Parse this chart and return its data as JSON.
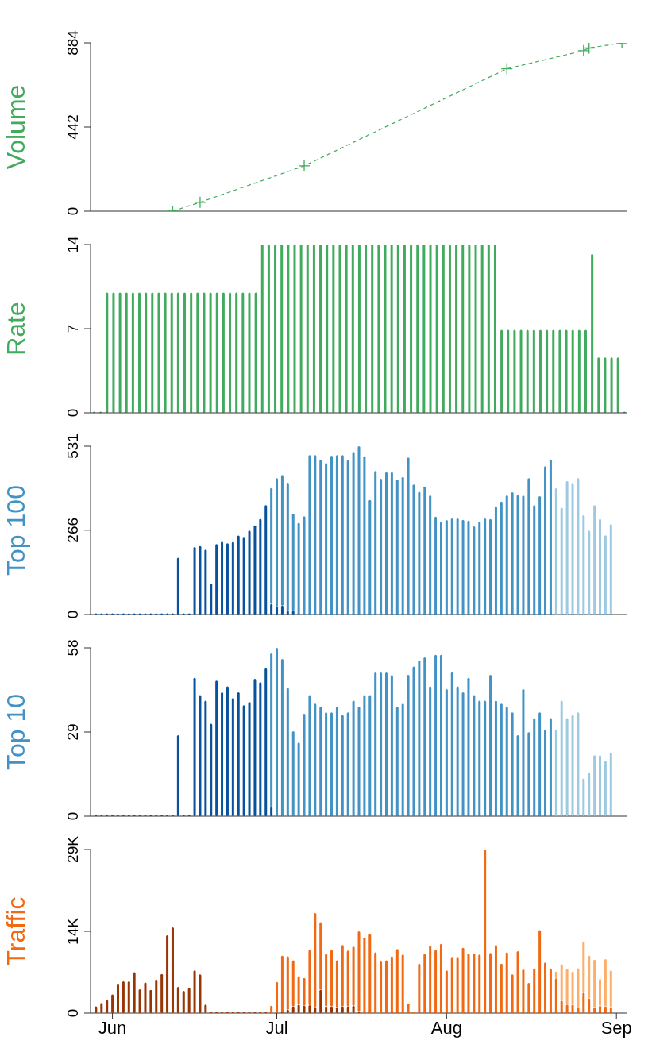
{
  "chart_data": [
    {
      "type": "line",
      "ylabel": "Volume",
      "line_style": "dashed",
      "marker": "cross",
      "tick_labels": "y",
      "xlim": [
        "--05-28",
        "--09-03"
      ],
      "xticks": [
        {
          "value": "--06-01",
          "label": null
        },
        {
          "value": "--07-01",
          "label": null
        },
        {
          "value": "--08-01",
          "label": null
        },
        {
          "value": "--09-01",
          "label": null
        }
      ],
      "ylim": [
        0,
        884
      ],
      "yticks": [
        0,
        442,
        884
      ],
      "x": [
        "--06-12",
        "--06-17",
        "--07-06",
        "--08-12",
        "--08-26",
        "--08-27",
        "--09-02"
      ],
      "series": [
        {
          "color": "#41ab5d",
          "values": [
            0,
            47,
            238,
            748,
            843,
            857,
            884
          ]
        }
      ]
    },
    {
      "type": "bar",
      "ylabel": "Rate",
      "tick_labels": "y",
      "ylim": [
        0,
        14
      ],
      "yticks": [
        0,
        7,
        14
      ],
      "categories": [
        null,
        null,
        null,
        null,
        null,
        null,
        null,
        null,
        null,
        null,
        null,
        null,
        null,
        null,
        null,
        null,
        null,
        null,
        null,
        null,
        null,
        null,
        null,
        null,
        null,
        null,
        null,
        null,
        null,
        null,
        null,
        null,
        null,
        null,
        null,
        null,
        null,
        null,
        null,
        null,
        null,
        null,
        null,
        null,
        null,
        null,
        null,
        null,
        null,
        null,
        null,
        null,
        null,
        null,
        null,
        null,
        null,
        null,
        null,
        null,
        null,
        null,
        null,
        null,
        null,
        null,
        null,
        null,
        null,
        null,
        null,
        null,
        null,
        null,
        null,
        null,
        null,
        null,
        null,
        null,
        null,
        null,
        null
      ],
      "series": [
        {
          "color": "#41ab5d",
          "values": [
            0,
            0,
            10,
            10,
            10,
            10,
            10,
            10,
            10,
            10,
            10,
            10,
            10,
            10,
            10,
            10,
            10,
            10,
            10,
            10,
            10,
            10,
            10,
            10,
            10,
            10,
            14,
            14,
            14,
            14,
            14,
            14,
            14,
            14,
            14,
            14,
            14,
            14,
            14,
            14,
            14,
            14,
            14,
            14,
            14,
            14,
            14,
            14,
            14,
            14,
            14,
            14,
            14,
            14,
            14,
            14,
            14,
            14,
            14,
            14,
            14,
            14,
            14,
            6.9,
            6.9,
            6.9,
            6.9,
            6.9,
            6.9,
            6.9,
            6.9,
            6.9,
            6.9,
            6.9,
            6.9,
            6.9,
            6.9,
            13.2,
            4.6,
            4.6,
            4.6,
            4.6,
            0
          ]
        }
      ]
    },
    {
      "type": "bar",
      "stacked": true,
      "ylabel": "Top 100",
      "tick_labels": "y",
      "xlim": [
        "--05-28",
        "--09-03"
      ],
      "xticks": [
        {
          "value": "--06-01",
          "label": null
        },
        {
          "value": "--07-01",
          "label": null
        },
        {
          "value": "--08-01",
          "label": null
        },
        {
          "value": "--09-01",
          "label": null
        }
      ],
      "ylim": [
        0,
        531
      ],
      "yticks": [
        0,
        266,
        531
      ],
      "x": [
        "--05-29",
        "--05-30",
        "--05-31",
        "--06-01",
        "--06-02",
        "--06-03",
        "--06-04",
        "--06-05",
        "--06-06",
        "--06-07",
        "--06-08",
        "--06-09",
        "--06-10",
        "--06-11",
        "--06-12",
        "--06-13",
        "--06-14",
        "--06-15",
        "--06-16",
        "--06-17",
        "--06-18",
        "--06-19",
        "--06-20",
        "--06-21",
        "--06-22",
        "--06-23",
        "--06-24",
        "--06-25",
        "--06-26",
        "--06-27",
        "--06-28",
        "--06-29",
        "--06-30",
        "--07-01",
        "--07-02",
        "--07-03",
        "--07-04",
        "--07-05",
        "--07-06",
        "--07-07",
        "--07-08",
        "--07-09",
        "--07-10",
        "--07-11",
        "--07-12",
        "--07-13",
        "--07-14",
        "--07-15",
        "--07-16",
        "--07-17",
        "--07-18",
        "--07-19",
        "--07-20",
        "--07-21",
        "--07-22",
        "--07-23",
        "--07-24",
        "--07-25",
        "--07-26",
        "--07-27",
        "--07-28",
        "--07-29",
        "--07-30",
        "--07-31",
        "--08-01",
        "--08-02",
        "--08-03",
        "--08-04",
        "--08-05",
        "--08-06",
        "--08-07",
        "--08-08",
        "--08-09",
        "--08-10",
        "--08-11",
        "--08-12",
        "--08-13",
        "--08-14",
        "--08-15",
        "--08-16",
        "--08-17",
        "--08-18",
        "--08-19",
        "--08-20",
        "--08-21",
        "--08-22",
        "--08-23",
        "--08-24",
        "--08-25",
        "--08-26",
        "--08-27",
        "--08-28",
        "--08-29",
        "--08-30",
        "--08-31"
      ],
      "series": [
        {
          "color": "#08519c",
          "values": [
            0,
            0,
            0,
            0,
            0,
            0,
            0,
            0,
            0,
            0,
            0,
            0,
            0,
            0,
            0,
            179,
            0,
            0,
            213,
            216,
            205,
            97,
            222,
            230,
            225,
            229,
            249,
            245,
            265,
            281,
            302,
            345,
            33,
            25,
            28,
            12,
            12,
            0,
            0,
            0,
            0,
            0,
            0,
            0,
            0,
            0,
            0,
            0,
            0,
            0,
            0,
            0,
            0,
            0,
            0,
            0,
            0,
            0,
            0,
            0,
            0,
            0,
            0,
            0,
            0,
            0,
            0,
            0,
            0,
            0,
            0,
            0,
            0,
            0,
            0,
            0,
            0,
            0,
            0,
            0,
            0,
            0,
            0,
            0,
            0,
            0,
            0,
            0,
            0,
            0,
            0,
            0,
            0,
            0,
            0
          ]
        },
        {
          "color": "#4292c6",
          "values": [
            null,
            null,
            null,
            null,
            null,
            null,
            null,
            null,
            null,
            null,
            null,
            null,
            null,
            null,
            null,
            null,
            null,
            null,
            null,
            null,
            null,
            null,
            null,
            null,
            null,
            null,
            null,
            null,
            null,
            null,
            null,
            null,
            366,
            405,
            412,
            404,
            306,
            289,
            310,
            503,
            503,
            487,
            478,
            501,
            503,
            503,
            487,
            513,
            531,
            499,
            361,
            453,
            428,
            449,
            449,
            426,
            434,
            495,
            410,
            387,
            404,
            376,
            309,
            293,
            298,
            303,
            303,
            299,
            296,
            278,
            293,
            303,
            301,
            342,
            356,
            376,
            386,
            377,
            375,
            430,
            345,
            373,
            468,
            489,
            null,
            null,
            null,
            null,
            null,
            null,
            null,
            null,
            null,
            null,
            null
          ]
        },
        {
          "color": "#9ecae1",
          "values": [
            null,
            null,
            null,
            null,
            null,
            null,
            null,
            null,
            null,
            null,
            null,
            null,
            null,
            null,
            null,
            null,
            null,
            null,
            null,
            null,
            null,
            null,
            null,
            null,
            null,
            null,
            null,
            null,
            null,
            null,
            null,
            null,
            null,
            null,
            null,
            null,
            null,
            null,
            null,
            null,
            null,
            null,
            null,
            null,
            null,
            null,
            null,
            null,
            null,
            null,
            null,
            null,
            null,
            null,
            null,
            null,
            null,
            null,
            null,
            null,
            null,
            null,
            null,
            null,
            null,
            null,
            null,
            null,
            null,
            null,
            null,
            null,
            null,
            null,
            null,
            null,
            null,
            null,
            null,
            null,
            null,
            null,
            null,
            null,
            398,
            337,
            421,
            415,
            430,
            313,
            265,
            345,
            301,
            250,
            285
          ]
        }
      ]
    },
    {
      "type": "bar",
      "stacked": true,
      "ylabel": "Top 10",
      "tick_labels": "y",
      "xlim": [
        "--05-28",
        "--09-03"
      ],
      "xticks": [
        {
          "value": "--06-01",
          "label": null
        },
        {
          "value": "--07-01",
          "label": null
        },
        {
          "value": "--08-01",
          "label": null
        },
        {
          "value": "--09-01",
          "label": null
        }
      ],
      "ylim": [
        0,
        58
      ],
      "yticks": [
        0,
        29,
        58
      ],
      "x": [
        "--05-29",
        "--05-30",
        "--05-31",
        "--06-01",
        "--06-02",
        "--06-03",
        "--06-04",
        "--06-05",
        "--06-06",
        "--06-07",
        "--06-08",
        "--06-09",
        "--06-10",
        "--06-11",
        "--06-12",
        "--06-13",
        "--06-14",
        "--06-15",
        "--06-16",
        "--06-17",
        "--06-18",
        "--06-19",
        "--06-20",
        "--06-21",
        "--06-22",
        "--06-23",
        "--06-24",
        "--06-25",
        "--06-26",
        "--06-27",
        "--06-28",
        "--06-29",
        "--06-30",
        "--07-01",
        "--07-02",
        "--07-03",
        "--07-04",
        "--07-05",
        "--07-06",
        "--07-07",
        "--07-08",
        "--07-09",
        "--07-10",
        "--07-11",
        "--07-12",
        "--07-13",
        "--07-14",
        "--07-15",
        "--07-16",
        "--07-17",
        "--07-18",
        "--07-19",
        "--07-20",
        "--07-21",
        "--07-22",
        "--07-23",
        "--07-24",
        "--07-25",
        "--07-26",
        "--07-27",
        "--07-28",
        "--07-29",
        "--07-30",
        "--07-31",
        "--08-01",
        "--08-02",
        "--08-03",
        "--08-04",
        "--08-05",
        "--08-06",
        "--08-07",
        "--08-08",
        "--08-09",
        "--08-10",
        "--08-11",
        "--08-12",
        "--08-13",
        "--08-14",
        "--08-15",
        "--08-16",
        "--08-17",
        "--08-18",
        "--08-19",
        "--08-20",
        "--08-21",
        "--08-22",
        "--08-23",
        "--08-24",
        "--08-25",
        "--08-26",
        "--08-27",
        "--08-28",
        "--08-29",
        "--08-30",
        "--08-31"
      ],
      "series": [
        {
          "color": "#08519c",
          "values": [
            0,
            0,
            0,
            0,
            0,
            0,
            0,
            0,
            0,
            0,
            0,
            0,
            0,
            0,
            0,
            27.9,
            0,
            0,
            47.7,
            41.7,
            39.8,
            31.9,
            46.7,
            42.7,
            44.7,
            40.7,
            42.7,
            38.2,
            39.3,
            47.3,
            46.2,
            51.2,
            3.2,
            0,
            0,
            0,
            0,
            0,
            0,
            0,
            0,
            0,
            0,
            0,
            0,
            0,
            0,
            0,
            0,
            0,
            0,
            0,
            0,
            0,
            0,
            0,
            0,
            0,
            0,
            0,
            0,
            0,
            0,
            0,
            0,
            0,
            0,
            0,
            0,
            0,
            0,
            0,
            0,
            0,
            0,
            0,
            0,
            0,
            0,
            0,
            0,
            0,
            0,
            0,
            0,
            0,
            0,
            0,
            0,
            0,
            0,
            0,
            0,
            0,
            0
          ]
        },
        {
          "color": "#4292c6",
          "values": [
            null,
            null,
            null,
            null,
            null,
            null,
            null,
            null,
            null,
            null,
            null,
            null,
            null,
            null,
            null,
            null,
            null,
            null,
            null,
            null,
            null,
            null,
            null,
            null,
            null,
            null,
            null,
            null,
            null,
            null,
            null,
            null,
            52.9,
            58,
            54.2,
            44.2,
            29.3,
            25.4,
            35.3,
            41.7,
            38.8,
            37.7,
            35.8,
            35.8,
            37.7,
            34.8,
            35.8,
            39.8,
            37.7,
            41.7,
            41.7,
            49.5,
            49.5,
            49.5,
            48.6,
            37.7,
            38.8,
            48.7,
            51.6,
            53.6,
            54.7,
            44.7,
            55.6,
            55.6,
            43.8,
            49.6,
            44.7,
            42.7,
            47.7,
            41.7,
            39.8,
            39.8,
            48.7,
            39.8,
            38.8,
            37.7,
            35.8,
            27.9,
            43.8,
            28.9,
            33.8,
            35.8,
            29.9,
            33.8,
            null,
            null,
            null,
            null,
            null,
            null,
            null,
            null,
            null,
            null,
            null
          ]
        },
        {
          "color": "#9ecae1",
          "values": [
            null,
            null,
            null,
            null,
            null,
            null,
            null,
            null,
            null,
            null,
            null,
            null,
            null,
            null,
            null,
            null,
            null,
            null,
            null,
            null,
            null,
            null,
            null,
            null,
            null,
            null,
            null,
            null,
            null,
            null,
            null,
            null,
            null,
            null,
            null,
            null,
            null,
            null,
            null,
            null,
            null,
            null,
            null,
            null,
            null,
            null,
            null,
            null,
            null,
            null,
            null,
            null,
            null,
            null,
            null,
            null,
            null,
            null,
            null,
            null,
            null,
            null,
            null,
            null,
            null,
            null,
            null,
            null,
            null,
            null,
            null,
            null,
            null,
            null,
            null,
            null,
            null,
            null,
            null,
            null,
            null,
            null,
            null,
            null,
            29.9,
            39.8,
            33.8,
            34.8,
            35.8,
            13.0,
            15.0,
            21.0,
            21.0,
            19.0,
            21.9
          ]
        }
      ]
    },
    {
      "type": "bar",
      "stacked": true,
      "ylabel": "Traffic",
      "xlim": [
        "--05-28",
        "--09-03"
      ],
      "xticks": [
        {
          "value": "--06-01",
          "label": "Jun"
        },
        {
          "value": "--07-01",
          "label": "Jul"
        },
        {
          "value": "--08-01",
          "label": "Aug"
        },
        {
          "value": "--09-01",
          "label": "Sep"
        }
      ],
      "ylim": [
        0,
        28800
      ],
      "yticks": [
        0,
        {
          "value": 14400,
          "label": "14K"
        },
        {
          "value": 28800,
          "label": "29K"
        }
      ],
      "x": [
        "--05-29",
        "--05-30",
        "--05-31",
        "--06-01",
        "--06-02",
        "--06-03",
        "--06-04",
        "--06-05",
        "--06-06",
        "--06-07",
        "--06-08",
        "--06-09",
        "--06-10",
        "--06-11",
        "--06-12",
        "--06-13",
        "--06-14",
        "--06-15",
        "--06-16",
        "--06-17",
        "--06-18",
        "--06-19",
        "--06-20",
        "--06-21",
        "--06-22",
        "--06-23",
        "--06-24",
        "--06-25",
        "--06-26",
        "--06-27",
        "--06-28",
        "--06-29",
        "--06-30",
        "--07-01",
        "--07-02",
        "--07-03",
        "--07-04",
        "--07-05",
        "--07-06",
        "--07-07",
        "--07-08",
        "--07-09",
        "--07-10",
        "--07-11",
        "--07-12",
        "--07-13",
        "--07-14",
        "--07-15",
        "--07-16",
        "--07-17",
        "--07-18",
        "--07-19",
        "--07-20",
        "--07-21",
        "--07-22",
        "--07-23",
        "--07-24",
        "--07-25",
        "--07-26",
        "--07-27",
        "--07-28",
        "--07-29",
        "--07-30",
        "--07-31",
        "--08-01",
        "--08-02",
        "--08-03",
        "--08-04",
        "--08-05",
        "--08-06",
        "--08-07",
        "--08-08",
        "--08-09",
        "--08-10",
        "--08-11",
        "--08-12",
        "--08-13",
        "--08-14",
        "--08-15",
        "--08-16",
        "--08-17",
        "--08-18",
        "--08-19",
        "--08-20",
        "--08-21",
        "--08-22",
        "--08-23",
        "--08-24",
        "--08-25",
        "--08-26",
        "--08-27",
        "--08-28",
        "--08-29",
        "--08-30",
        "--08-31"
      ],
      "series": [
        {
          "color": "#993404",
          "values": [
            1200,
            1800,
            2300,
            3300,
            5200,
            5600,
            5600,
            7200,
            4200,
            5400,
            4100,
            5900,
            6900,
            13700,
            15100,
            4600,
            3900,
            4400,
            7500,
            6800,
            1500,
            0,
            0,
            0,
            0,
            0,
            0,
            0,
            0,
            0,
            0,
            0,
            0,
            0,
            100,
            600,
            1200,
            1500,
            1300,
            1400,
            1100,
            4100,
            1200,
            1200,
            1000,
            1200,
            1200,
            1300,
            300,
            0,
            0,
            0,
            0,
            0,
            0,
            0,
            0,
            0,
            0,
            0,
            0,
            0,
            0,
            0,
            0,
            0,
            0,
            0,
            0,
            0,
            0,
            0,
            0,
            0,
            0,
            0,
            0,
            0,
            0,
            0,
            0,
            0,
            0,
            0,
            0,
            0,
            0,
            0,
            0,
            0,
            0,
            0,
            0,
            0,
            0
          ]
        },
        {
          "color": "#f16913",
          "values": [
            null,
            null,
            null,
            null,
            null,
            null,
            null,
            null,
            null,
            null,
            null,
            null,
            null,
            null,
            null,
            null,
            null,
            null,
            null,
            null,
            null,
            null,
            null,
            null,
            null,
            null,
            null,
            null,
            null,
            null,
            null,
            null,
            1300,
            5500,
            10000,
            9400,
            8100,
            5000,
            4900,
            9700,
            16500,
            11900,
            9200,
            9900,
            8300,
            10800,
            9800,
            10400,
            14100,
            13300,
            13900,
            10700,
            9100,
            9300,
            10000,
            11300,
            10300,
            1700,
            0,
            8700,
            10400,
            11900,
            11100,
            12200,
            7500,
            9900,
            9900,
            11500,
            10500,
            10500,
            10300,
            28800,
            10600,
            12000,
            8700,
            10700,
            6800,
            10900,
            7700,
            5300,
            7900,
            14600,
            8900,
            7800,
            6100,
            2200,
            1500,
            1500,
            1100,
            3600,
            2600,
            1000,
            1300,
            1200,
            1100
          ]
        },
        {
          "color": "#fdae6b",
          "values": [
            null,
            null,
            null,
            null,
            null,
            null,
            null,
            null,
            null,
            null,
            null,
            null,
            null,
            null,
            null,
            null,
            null,
            null,
            null,
            null,
            null,
            null,
            null,
            null,
            null,
            null,
            null,
            null,
            null,
            null,
            null,
            null,
            null,
            null,
            null,
            null,
            null,
            null,
            null,
            null,
            null,
            null,
            null,
            null,
            null,
            null,
            null,
            null,
            null,
            null,
            null,
            null,
            null,
            null,
            null,
            null,
            null,
            null,
            null,
            null,
            null,
            null,
            null,
            null,
            null,
            null,
            null,
            null,
            null,
            null,
            null,
            null,
            null,
            null,
            null,
            null,
            null,
            null,
            null,
            null,
            null,
            null,
            null,
            null,
            1200,
            6400,
            6300,
            5800,
            6800,
            9000,
            7500,
            8400,
            4700,
            8300,
            6400
          ]
        }
      ]
    }
  ]
}
